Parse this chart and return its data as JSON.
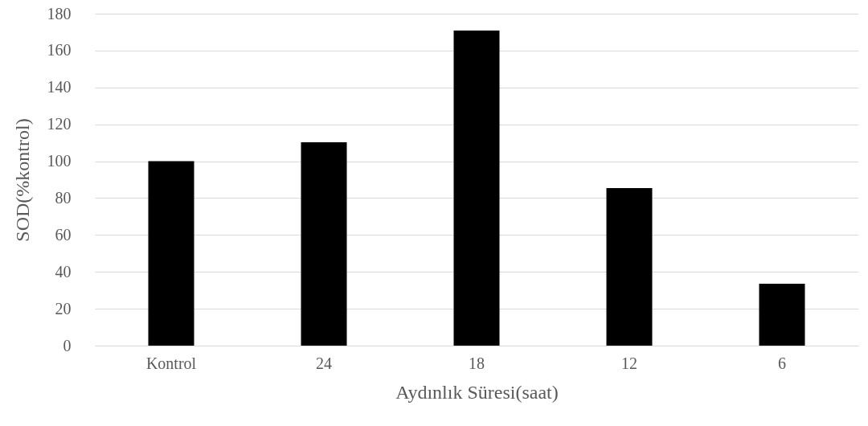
{
  "chart_data": {
    "type": "bar",
    "xlabel": "Aydınlık Süresi(saat)",
    "ylabel": "SOD(%kontrol)",
    "categories": [
      "Kontrol",
      "24",
      "18",
      "12",
      "6"
    ],
    "values": [
      100,
      110.3,
      170.9,
      85.4,
      33.6
    ],
    "color": "#000000",
    "ylim": [
      0,
      180
    ],
    "yticks": [
      0,
      20,
      40,
      60,
      80,
      100,
      120,
      140,
      160,
      180
    ],
    "grid": "y"
  }
}
